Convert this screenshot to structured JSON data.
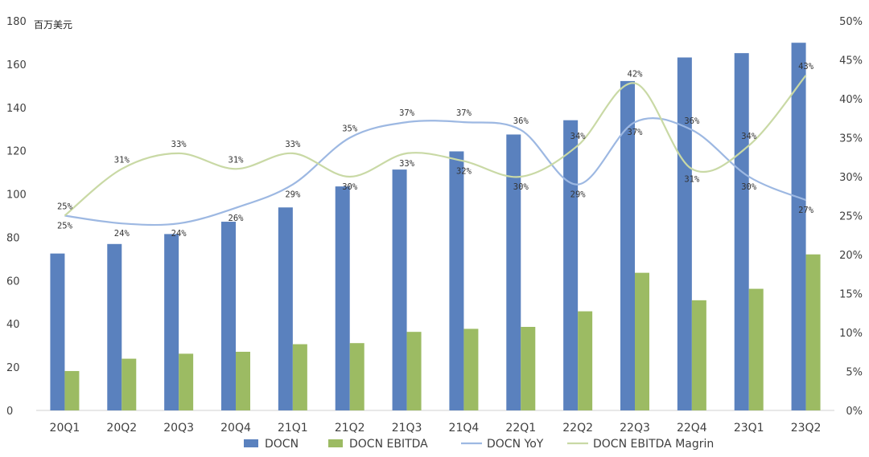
{
  "chart_data": {
    "type": "bar",
    "unit_label": "百万美元",
    "categories": [
      "20Q1",
      "20Q2",
      "20Q3",
      "20Q4",
      "21Q1",
      "21Q2",
      "21Q3",
      "21Q4",
      "22Q1",
      "22Q2",
      "22Q3",
      "22Q4",
      "23Q1",
      "23Q2"
    ],
    "left_axis": {
      "min": 0,
      "max": 180,
      "step": 20,
      "ticks": [
        "0",
        "20",
        "40",
        "60",
        "80",
        "100",
        "120",
        "140",
        "160",
        "180"
      ]
    },
    "right_axis": {
      "min": 0,
      "max": 50,
      "step": 5,
      "ticks": [
        "0%",
        "5%",
        "10%",
        "15%",
        "20%",
        "25%",
        "30%",
        "35%",
        "40%",
        "45%",
        "50%"
      ]
    },
    "grid": false,
    "legend_position": "bottom",
    "series": [
      {
        "name": "DOCN",
        "kind": "bar",
        "axis": "left",
        "color": "#5a81be",
        "values": [
          72.5,
          76.9,
          81.5,
          87.2,
          93.8,
          103.5,
          111.3,
          119.7,
          127.5,
          134.1,
          152.2,
          163.1,
          165.1,
          169.9
        ]
      },
      {
        "name": "DOCN EBITDA",
        "kind": "bar",
        "axis": "left",
        "color": "#9cbb63",
        "values": [
          18.2,
          23.9,
          26.2,
          27.1,
          30.6,
          31.1,
          36.3,
          37.7,
          38.6,
          45.8,
          63.6,
          50.9,
          56.2,
          72.1
        ]
      },
      {
        "name": "DOCN YoY",
        "kind": "line",
        "axis": "right",
        "color": "#9db8e2",
        "values": [
          25,
          24,
          24,
          26,
          29,
          35,
          37,
          37,
          36,
          29,
          37,
          36,
          30,
          27
        ],
        "labels": [
          "25%",
          "24%",
          "24%",
          "26%",
          "29%",
          "35%",
          "37%",
          "37%",
          "36%",
          "29%",
          "37%",
          "36%",
          "30%",
          "27%"
        ]
      },
      {
        "name": "DOCN EBITDA Magrin",
        "kind": "line",
        "axis": "right",
        "color": "#c9d9a5",
        "values": [
          25,
          31,
          33,
          31,
          33,
          30,
          33,
          32,
          30,
          34,
          42,
          31,
          34,
          43
        ],
        "labels": [
          "25%",
          "31%",
          "33%",
          "31%",
          "33%",
          "30%",
          "33%",
          "32%",
          "30%",
          "34%",
          "42%",
          "31%",
          "34%",
          "43%"
        ]
      }
    ]
  }
}
